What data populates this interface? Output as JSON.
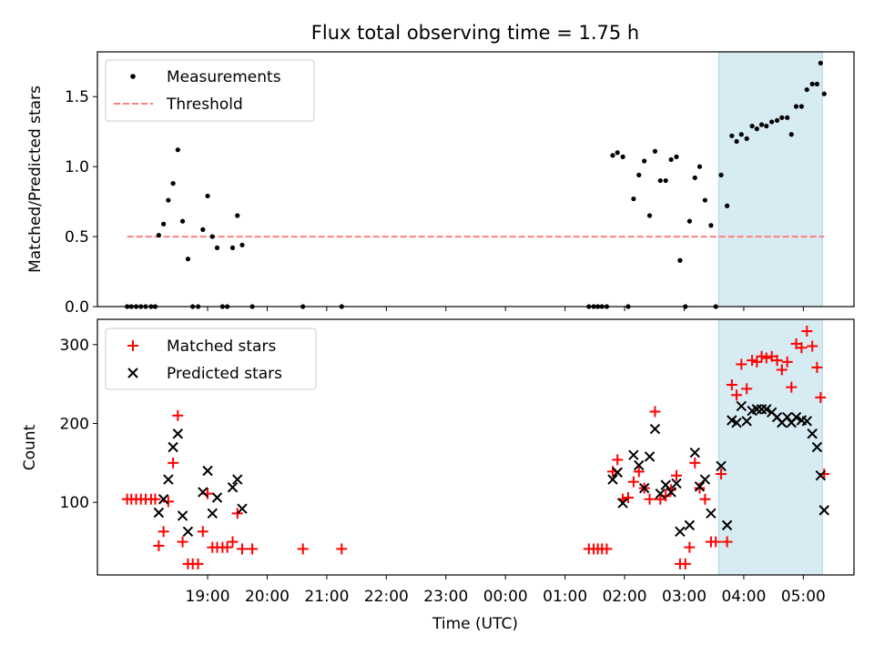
{
  "chart_data": [
    {
      "type": "scatter",
      "title": "Flux total observing time = 1.75 h",
      "xlabel": "",
      "ylabel": "Matched/Predicted stars",
      "ylim": [
        0,
        1.82
      ],
      "yticks": [
        0.0,
        0.5,
        1.0,
        1.5
      ],
      "ytick_labels": [
        "0.0",
        "0.5",
        "1.0",
        "1.5"
      ],
      "x_unit": "hours since 18:00 UTC",
      "xlim": [
        -0.85,
        11.85
      ],
      "legend_position": "top-left",
      "highlight_span": [
        9.58,
        11.32
      ],
      "threshold": {
        "name": "Threshold",
        "value": 0.5,
        "x_range": [
          -0.35,
          11.35
        ],
        "color": "#ff7f7f"
      },
      "series": [
        {
          "name": "Measurements",
          "color": "#000000",
          "points": [
            [
              -0.35,
              0.0
            ],
            [
              -0.28,
              0.0
            ],
            [
              -0.2,
              0.0
            ],
            [
              -0.12,
              0.0
            ],
            [
              -0.04,
              0.0
            ],
            [
              0.05,
              0.0
            ],
            [
              0.12,
              0.0
            ],
            [
              0.18,
              0.51
            ],
            [
              0.26,
              0.59
            ],
            [
              0.34,
              0.76
            ],
            [
              0.42,
              0.88
            ],
            [
              0.5,
              1.12
            ],
            [
              0.58,
              0.61
            ],
            [
              0.67,
              0.34
            ],
            [
              0.75,
              0.0
            ],
            [
              0.84,
              0.0
            ],
            [
              0.92,
              0.55
            ],
            [
              1.0,
              0.79
            ],
            [
              1.08,
              0.5
            ],
            [
              1.16,
              0.42
            ],
            [
              1.25,
              0.0
            ],
            [
              1.33,
              0.0
            ],
            [
              1.42,
              0.42
            ],
            [
              1.5,
              0.65
            ],
            [
              1.58,
              0.44
            ],
            [
              1.75,
              0.0
            ],
            [
              2.6,
              0.0
            ],
            [
              3.25,
              0.0
            ],
            [
              7.4,
              0.0
            ],
            [
              7.48,
              0.0
            ],
            [
              7.55,
              0.0
            ],
            [
              7.62,
              0.0
            ],
            [
              7.7,
              0.0
            ],
            [
              7.8,
              1.08
            ],
            [
              7.88,
              1.1
            ],
            [
              7.97,
              1.07
            ],
            [
              8.06,
              0.0
            ],
            [
              8.15,
              0.77
            ],
            [
              8.24,
              0.94
            ],
            [
              8.33,
              1.04
            ],
            [
              8.42,
              0.65
            ],
            [
              8.51,
              1.11
            ],
            [
              8.6,
              0.9
            ],
            [
              8.69,
              0.9
            ],
            [
              8.78,
              1.05
            ],
            [
              8.87,
              1.07
            ],
            [
              8.93,
              0.33
            ],
            [
              9.02,
              0.0
            ],
            [
              9.09,
              0.61
            ],
            [
              9.18,
              0.92
            ],
            [
              9.26,
              1.0
            ],
            [
              9.35,
              0.76
            ],
            [
              9.45,
              0.58
            ],
            [
              9.53,
              0.0
            ],
            [
              9.62,
              0.94
            ],
            [
              9.72,
              0.72
            ],
            [
              9.8,
              1.22
            ],
            [
              9.88,
              1.18
            ],
            [
              9.96,
              1.23
            ],
            [
              10.05,
              1.2
            ],
            [
              10.14,
              1.29
            ],
            [
              10.22,
              1.27
            ],
            [
              10.3,
              1.3
            ],
            [
              10.38,
              1.29
            ],
            [
              10.47,
              1.32
            ],
            [
              10.56,
              1.33
            ],
            [
              10.64,
              1.35
            ],
            [
              10.73,
              1.35
            ],
            [
              10.8,
              1.23
            ],
            [
              10.88,
              1.43
            ],
            [
              10.97,
              1.43
            ],
            [
              11.06,
              1.55
            ],
            [
              11.15,
              1.59
            ],
            [
              11.23,
              1.59
            ],
            [
              11.29,
              1.74
            ],
            [
              11.35,
              1.52
            ]
          ]
        }
      ],
      "legend": [
        "Measurements",
        "Threshold"
      ]
    },
    {
      "type": "scatter",
      "title": "",
      "xlabel": "Time (UTC)",
      "ylabel": "Count",
      "ylim": [
        8,
        332
      ],
      "yticks": [
        100,
        200,
        300
      ],
      "ytick_labels": [
        "100",
        "200",
        "300"
      ],
      "x_unit": "hours since 18:00 UTC",
      "xlim": [
        -0.85,
        11.85
      ],
      "xticks": [
        1,
        2,
        3,
        4,
        5,
        6,
        7,
        8,
        9,
        10,
        11
      ],
      "xtick_labels": [
        "19:00",
        "20:00",
        "21:00",
        "22:00",
        "23:00",
        "00:00",
        "01:00",
        "02:00",
        "03:00",
        "04:00",
        "05:00"
      ],
      "legend_position": "top-left",
      "highlight_span": [
        9.58,
        11.32
      ],
      "series": [
        {
          "name": "Matched stars",
          "marker": "plus",
          "color": "#ff0000",
          "points": [
            [
              -0.35,
              104
            ],
            [
              -0.28,
              104
            ],
            [
              -0.2,
              104
            ],
            [
              -0.12,
              104
            ],
            [
              -0.04,
              104
            ],
            [
              0.05,
              104
            ],
            [
              0.12,
              104
            ],
            [
              0.18,
              45
            ],
            [
              0.26,
              63
            ],
            [
              0.34,
              101
            ],
            [
              0.42,
              150
            ],
            [
              0.5,
              210
            ],
            [
              0.58,
              50
            ],
            [
              0.67,
              22
            ],
            [
              0.75,
              22
            ],
            [
              0.84,
              22
            ],
            [
              0.92,
              63
            ],
            [
              1.0,
              111
            ],
            [
              1.08,
              43
            ],
            [
              1.16,
              43
            ],
            [
              1.25,
              43
            ],
            [
              1.33,
              43
            ],
            [
              1.42,
              50
            ],
            [
              1.5,
              86
            ],
            [
              1.58,
              41
            ],
            [
              1.75,
              41
            ],
            [
              2.6,
              41
            ],
            [
              3.25,
              41
            ],
            [
              7.4,
              41
            ],
            [
              7.48,
              41
            ],
            [
              7.55,
              41
            ],
            [
              7.62,
              41
            ],
            [
              7.7,
              41
            ],
            [
              7.8,
              139
            ],
            [
              7.88,
              154
            ],
            [
              7.97,
              104
            ],
            [
              8.06,
              106
            ],
            [
              8.15,
              126
            ],
            [
              8.24,
              139
            ],
            [
              8.33,
              118
            ],
            [
              8.42,
              104
            ],
            [
              8.51,
              215
            ],
            [
              8.6,
              104
            ],
            [
              8.69,
              108
            ],
            [
              8.78,
              116
            ],
            [
              8.87,
              134
            ],
            [
              8.93,
              22
            ],
            [
              9.02,
              22
            ],
            [
              9.09,
              43
            ],
            [
              9.18,
              150
            ],
            [
              9.26,
              118
            ],
            [
              9.35,
              104
            ],
            [
              9.45,
              50
            ],
            [
              9.53,
              50
            ],
            [
              9.62,
              136
            ],
            [
              9.72,
              50
            ],
            [
              9.8,
              249
            ],
            [
              9.88,
              236
            ],
            [
              9.96,
              275
            ],
            [
              10.05,
              244
            ],
            [
              10.14,
              280
            ],
            [
              10.22,
              278
            ],
            [
              10.3,
              285
            ],
            [
              10.38,
              283
            ],
            [
              10.47,
              285
            ],
            [
              10.56,
              280
            ],
            [
              10.64,
              268
            ],
            [
              10.73,
              278
            ],
            [
              10.8,
              246
            ],
            [
              10.88,
              301
            ],
            [
              10.97,
              296
            ],
            [
              11.06,
              317
            ],
            [
              11.15,
              298
            ],
            [
              11.23,
              271
            ],
            [
              11.29,
              233
            ],
            [
              11.35,
              136
            ]
          ]
        },
        {
          "name": "Predicted stars",
          "marker": "x",
          "color": "#000000",
          "points": [
            [
              0.18,
              87
            ],
            [
              0.26,
              104
            ],
            [
              0.34,
              129
            ],
            [
              0.42,
              170
            ],
            [
              0.5,
              187
            ],
            [
              0.58,
              83
            ],
            [
              0.67,
              63
            ],
            [
              0.92,
              113
            ],
            [
              1.0,
              140
            ],
            [
              1.08,
              86
            ],
            [
              1.16,
              106
            ],
            [
              1.42,
              119
            ],
            [
              1.5,
              129
            ],
            [
              1.58,
              92
            ],
            [
              7.8,
              129
            ],
            [
              7.88,
              138
            ],
            [
              7.97,
              99
            ],
            [
              8.15,
              160
            ],
            [
              8.24,
              147
            ],
            [
              8.33,
              118
            ],
            [
              8.42,
              158
            ],
            [
              8.51,
              193
            ],
            [
              8.6,
              111
            ],
            [
              8.69,
              122
            ],
            [
              8.78,
              113
            ],
            [
              8.87,
              124
            ],
            [
              8.93,
              63
            ],
            [
              9.09,
              71
            ],
            [
              9.18,
              163
            ],
            [
              9.26,
              120
            ],
            [
              9.35,
              129
            ],
            [
              9.45,
              86
            ],
            [
              9.62,
              146
            ],
            [
              9.72,
              71
            ],
            [
              9.8,
              204
            ],
            [
              9.88,
              201
            ],
            [
              9.96,
              222
            ],
            [
              10.05,
              203
            ],
            [
              10.14,
              216
            ],
            [
              10.22,
              218
            ],
            [
              10.3,
              218
            ],
            [
              10.38,
              218
            ],
            [
              10.47,
              214
            ],
            [
              10.56,
              208
            ],
            [
              10.64,
              201
            ],
            [
              10.73,
              208
            ],
            [
              10.8,
              201
            ],
            [
              10.88,
              208
            ],
            [
              10.97,
              204
            ],
            [
              11.06,
              203
            ],
            [
              11.15,
              187
            ],
            [
              11.23,
              170
            ],
            [
              11.29,
              134
            ],
            [
              11.35,
              90
            ]
          ]
        }
      ],
      "legend": [
        "Matched stars",
        "Predicted stars"
      ]
    }
  ]
}
